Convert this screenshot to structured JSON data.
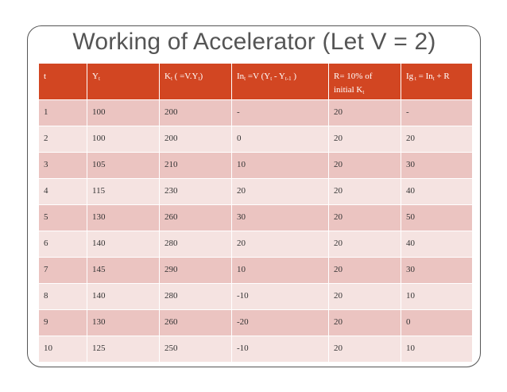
{
  "title": "Working of Accelerator (Let V = 2)",
  "table": {
    "headers": [
      {
        "pre": "t",
        "sub": "",
        "post": "",
        "sub2": "",
        "post2": "",
        "sub3": "",
        "post3": "",
        "line2": "",
        "line2_sub": ""
      },
      {
        "pre": "Y",
        "sub": "t",
        "post": "",
        "sub2": "",
        "post2": "",
        "sub3": "",
        "post3": "",
        "line2": "",
        "line2_sub": ""
      },
      {
        "pre": "K",
        "sub": "t",
        "post": " ( =V.Y",
        "sub2": "t",
        "post2": ")",
        "sub3": "",
        "post3": "",
        "line2": "",
        "line2_sub": ""
      },
      {
        "pre": "In",
        "sub": "t",
        "post": " =V (Y",
        "sub2": "t",
        "post2": " - Y",
        "sub3": "t-1",
        "post3": " )",
        "line2": "",
        "line2_sub": ""
      },
      {
        "pre": "R= 10% of",
        "sub": "",
        "post": "",
        "sub2": "",
        "post2": "",
        "sub3": "",
        "post3": "",
        "line2": "initial K",
        "line2_sub": "t"
      },
      {
        "pre": "Ig",
        "sub": " t",
        "post": " = In",
        "sub2": "t",
        "post2": " + R",
        "sub3": "",
        "post3": "",
        "line2": "",
        "line2_sub": ""
      }
    ],
    "rows": [
      [
        "1",
        "100",
        "200",
        "-",
        "20",
        "-"
      ],
      [
        "2",
        "100",
        "200",
        "0",
        "20",
        "20"
      ],
      [
        "3",
        "105",
        "210",
        "10",
        "20",
        "30"
      ],
      [
        "4",
        "115",
        "230",
        "20",
        "20",
        "40"
      ],
      [
        "5",
        "130",
        "260",
        "30",
        "20",
        "50"
      ],
      [
        "6",
        "140",
        "280",
        "20",
        "20",
        "40"
      ],
      [
        "7",
        "145",
        "290",
        "10",
        "20",
        "30"
      ],
      [
        "8",
        "140",
        "280",
        "-10",
        "20",
        "10"
      ],
      [
        "9",
        "130",
        "260",
        "-20",
        "20",
        "0"
      ],
      [
        "10",
        "125",
        "250",
        "-10",
        "20",
        "10"
      ]
    ]
  },
  "colors": {
    "header_bg": "#d24622",
    "row_dark": "#ebc4c1",
    "row_light": "#f5e3e1",
    "title": "#555555"
  }
}
